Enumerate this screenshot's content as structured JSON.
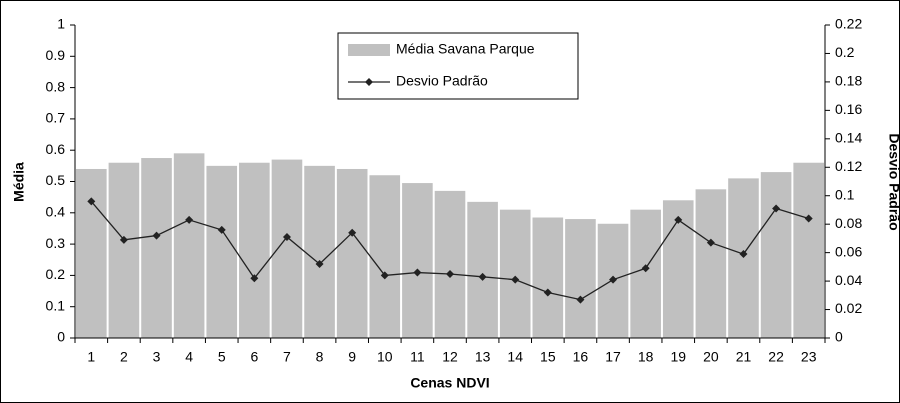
{
  "chart_data": {
    "type": "bar",
    "xlabel": "Cenas NDVI",
    "ylabel": "Média",
    "y2label": "Desvio Padrão",
    "categories": [
      "1",
      "2",
      "3",
      "4",
      "5",
      "6",
      "7",
      "8",
      "9",
      "10",
      "11",
      "12",
      "13",
      "14",
      "15",
      "16",
      "17",
      "18",
      "19",
      "20",
      "21",
      "22",
      "23"
    ],
    "series": [
      {
        "name": "Média Savana Parque",
        "type": "bar",
        "axis": "y",
        "color": "#c0c0c0",
        "values": [
          0.54,
          0.56,
          0.575,
          0.59,
          0.55,
          0.56,
          0.57,
          0.55,
          0.54,
          0.52,
          0.495,
          0.47,
          0.435,
          0.41,
          0.385,
          0.38,
          0.365,
          0.41,
          0.44,
          0.475,
          0.51,
          0.53,
          0.56
        ]
      },
      {
        "name": "Desvio Padrão",
        "type": "line",
        "axis": "y2",
        "color": "#222222",
        "values": [
          0.096,
          0.069,
          0.072,
          0.083,
          0.076,
          0.042,
          0.071,
          0.052,
          0.074,
          0.044,
          0.046,
          0.045,
          0.043,
          0.041,
          0.032,
          0.027,
          0.041,
          0.049,
          0.083,
          0.067,
          0.059,
          0.091,
          0.084
        ]
      }
    ],
    "ylim": [
      0,
      1
    ],
    "yticks": [
      0,
      0.1,
      0.2,
      0.3,
      0.4,
      0.5,
      0.6,
      0.7,
      0.8,
      0.9,
      1
    ],
    "y2lim": [
      0,
      0.22
    ],
    "y2ticks": [
      0,
      0.02,
      0.04,
      0.06,
      0.08,
      0.1,
      0.12,
      0.14,
      0.16,
      0.18,
      0.2,
      0.22
    ],
    "legend": "top",
    "grid": false
  }
}
